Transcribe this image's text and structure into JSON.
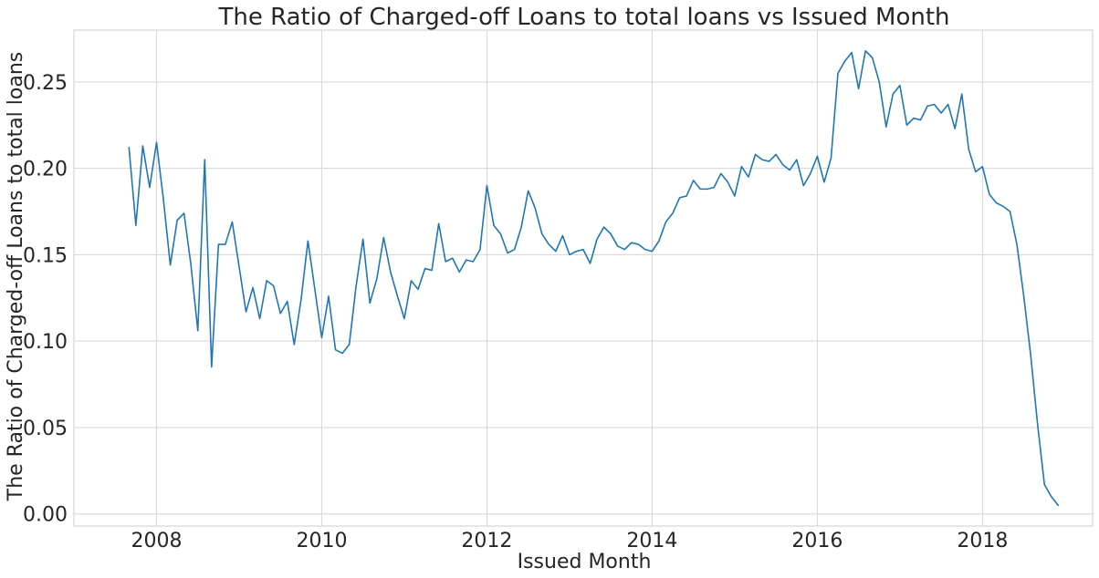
{
  "chart_data": {
    "type": "line",
    "title": "The Ratio of Charged-off Loans to total loans vs Issued Month",
    "xlabel": "Issued Month",
    "ylabel": "The Ratio of Charged-off Loans to total loans",
    "x_ticks": [
      "2008",
      "2010",
      "2012",
      "2014",
      "2016",
      "2018"
    ],
    "y_ticks": [
      "0.00",
      "0.05",
      "0.10",
      "0.15",
      "0.20",
      "0.25"
    ],
    "xlim": [
      "2007-01",
      "2019-05"
    ],
    "ylim": [
      -0.007,
      0.28
    ],
    "grid": true,
    "legend": "none",
    "colors": {
      "line": "#1f77b4",
      "grid": "#d6d6d6",
      "text": "#262626"
    },
    "series": [
      {
        "x": [
          "2007-09",
          "2007-10",
          "2007-11",
          "2007-12",
          "2008-01",
          "2008-02",
          "2008-03",
          "2008-04",
          "2008-05",
          "2008-06",
          "2008-07",
          "2008-08",
          "2008-09",
          "2008-10",
          "2008-11",
          "2008-12",
          "2009-01",
          "2009-02",
          "2009-03",
          "2009-04",
          "2009-05",
          "2009-06",
          "2009-07",
          "2009-08",
          "2009-09",
          "2009-10",
          "2009-11",
          "2009-12",
          "2010-01",
          "2010-02",
          "2010-03",
          "2010-04",
          "2010-05",
          "2010-06",
          "2010-07",
          "2010-08",
          "2010-09",
          "2010-10",
          "2010-11",
          "2010-12",
          "2011-01",
          "2011-02",
          "2011-03",
          "2011-04",
          "2011-05",
          "2011-06",
          "2011-07",
          "2011-08",
          "2011-09",
          "2011-10",
          "2011-11",
          "2011-12",
          "2012-01",
          "2012-02",
          "2012-03",
          "2012-04",
          "2012-05",
          "2012-06",
          "2012-07",
          "2012-08",
          "2012-09",
          "2012-10",
          "2012-11",
          "2012-12",
          "2013-01",
          "2013-02",
          "2013-03",
          "2013-04",
          "2013-05",
          "2013-06",
          "2013-07",
          "2013-08",
          "2013-09",
          "2013-10",
          "2013-11",
          "2013-12",
          "2014-01",
          "2014-02",
          "2014-03",
          "2014-04",
          "2014-05",
          "2014-06",
          "2014-07",
          "2014-08",
          "2014-09",
          "2014-10",
          "2014-11",
          "2014-12",
          "2015-01",
          "2015-02",
          "2015-03",
          "2015-04",
          "2015-05",
          "2015-06",
          "2015-07",
          "2015-08",
          "2015-09",
          "2015-10",
          "2015-11",
          "2015-12",
          "2016-01",
          "2016-02",
          "2016-03",
          "2016-04",
          "2016-05",
          "2016-06",
          "2016-07",
          "2016-08",
          "2016-09",
          "2016-10",
          "2016-11",
          "2016-12",
          "2017-01",
          "2017-02",
          "2017-03",
          "2017-04",
          "2017-05",
          "2017-06",
          "2017-07",
          "2017-08",
          "2017-09",
          "2017-10",
          "2017-11",
          "2017-12",
          "2018-01",
          "2018-02",
          "2018-03",
          "2018-04",
          "2018-05",
          "2018-06",
          "2018-07",
          "2018-08",
          "2018-09",
          "2018-10",
          "2018-11",
          "2018-12"
        ],
        "y": [
          0.212,
          0.167,
          0.213,
          0.189,
          0.215,
          0.182,
          0.144,
          0.17,
          0.174,
          0.144,
          0.106,
          0.205,
          0.085,
          0.156,
          0.156,
          0.169,
          0.143,
          0.117,
          0.131,
          0.113,
          0.135,
          0.132,
          0.116,
          0.123,
          0.098,
          0.124,
          0.158,
          0.13,
          0.102,
          0.126,
          0.095,
          0.093,
          0.098,
          0.132,
          0.159,
          0.122,
          0.136,
          0.16,
          0.14,
          0.126,
          0.113,
          0.135,
          0.13,
          0.142,
          0.141,
          0.168,
          0.146,
          0.148,
          0.14,
          0.147,
          0.146,
          0.153,
          0.19,
          0.167,
          0.162,
          0.151,
          0.153,
          0.166,
          0.187,
          0.177,
          0.162,
          0.156,
          0.152,
          0.161,
          0.15,
          0.152,
          0.153,
          0.145,
          0.159,
          0.166,
          0.162,
          0.155,
          0.153,
          0.157,
          0.156,
          0.153,
          0.152,
          0.158,
          0.169,
          0.174,
          0.183,
          0.184,
          0.193,
          0.188,
          0.188,
          0.189,
          0.197,
          0.192,
          0.184,
          0.201,
          0.195,
          0.208,
          0.205,
          0.204,
          0.208,
          0.202,
          0.199,
          0.205,
          0.19,
          0.197,
          0.207,
          0.192,
          0.206,
          0.255,
          0.262,
          0.267,
          0.246,
          0.268,
          0.264,
          0.25,
          0.224,
          0.243,
          0.248,
          0.225,
          0.229,
          0.228,
          0.236,
          0.237,
          0.232,
          0.237,
          0.223,
          0.243,
          0.211,
          0.198,
          0.201,
          0.185,
          0.18,
          0.178,
          0.175,
          0.156,
          0.126,
          0.092,
          0.052,
          0.017,
          0.01,
          0.005
        ]
      }
    ]
  }
}
